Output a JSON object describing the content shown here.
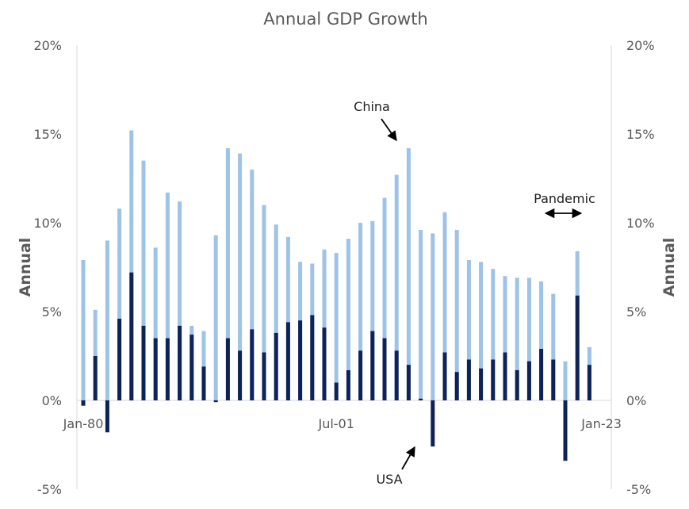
{
  "chart_data": {
    "type": "bar",
    "title": "Annual GDP Growth",
    "ylabel_left": "Annual",
    "ylabel_right": "Annual",
    "ylim": [
      -5,
      20
    ],
    "yticks": [
      -5,
      0,
      5,
      10,
      15,
      20
    ],
    "ytick_labels": [
      "-5%",
      "0%",
      "5%",
      "10%",
      "15%",
      "20%"
    ],
    "x_tick_labels": [
      {
        "label": "Jan-80",
        "year": 1980
      },
      {
        "label": "Jul-01",
        "year": 2001
      },
      {
        "label": "Jan-23",
        "year": 2023
      }
    ],
    "grid": false,
    "categories": [
      1980,
      1981,
      1982,
      1983,
      1984,
      1985,
      1986,
      1987,
      1988,
      1989,
      1990,
      1991,
      1992,
      1993,
      1994,
      1995,
      1996,
      1997,
      1998,
      1999,
      2000,
      2001,
      2002,
      2003,
      2004,
      2005,
      2006,
      2007,
      2008,
      2009,
      2010,
      2011,
      2012,
      2013,
      2014,
      2015,
      2016,
      2017,
      2018,
      2019,
      2020,
      2021,
      2022
    ],
    "series": [
      {
        "key": "china",
        "color": "#9dc3e6",
        "values": [
          7.9,
          5.1,
          9.0,
          10.8,
          15.2,
          13.5,
          8.6,
          11.7,
          11.2,
          4.2,
          3.9,
          9.3,
          14.2,
          13.9,
          13.0,
          11.0,
          9.9,
          9.2,
          7.8,
          7.7,
          8.5,
          8.3,
          9.1,
          10.0,
          10.1,
          11.4,
          12.7,
          14.2,
          9.6,
          9.4,
          10.6,
          9.6,
          7.9,
          7.8,
          7.4,
          7.0,
          6.9,
          6.9,
          6.7,
          6.0,
          2.2,
          8.4,
          3.0
        ]
      },
      {
        "key": "usa",
        "color": "#0c2259",
        "values": [
          -0.3,
          2.5,
          -1.8,
          4.6,
          7.2,
          4.2,
          3.5,
          3.5,
          4.2,
          3.7,
          1.9,
          -0.1,
          3.5,
          2.8,
          4.0,
          2.7,
          3.8,
          4.4,
          4.5,
          4.8,
          4.1,
          1.0,
          1.7,
          2.8,
          3.9,
          3.5,
          2.8,
          2.0,
          0.1,
          -2.6,
          2.7,
          1.6,
          2.3,
          1.8,
          2.3,
          2.7,
          1.7,
          2.2,
          2.9,
          2.3,
          -3.4,
          5.9,
          2.0
        ]
      }
    ],
    "annotations": [
      {
        "text": "China"
      },
      {
        "text": "USA"
      },
      {
        "text": "Pandemic"
      }
    ]
  }
}
